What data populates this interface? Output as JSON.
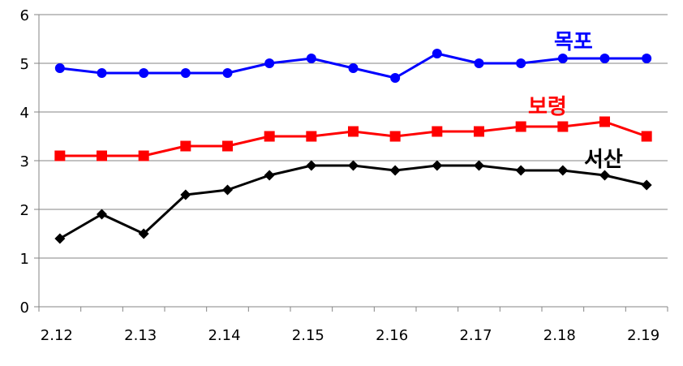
{
  "chart_data": {
    "type": "line",
    "title": "",
    "xlabel": "",
    "ylabel": "",
    "ylim": [
      0,
      6
    ],
    "yticks": [
      "0",
      "1",
      "2",
      "3",
      "4",
      "5",
      "6"
    ],
    "xticks": [
      "2.12",
      "2.13",
      "2.14",
      "2.15",
      "2.16",
      "2.17",
      "2.18",
      "2.19"
    ],
    "x_index_range": [
      0,
      15
    ],
    "grid": "horizontal",
    "series": [
      {
        "name": "목포",
        "color": "#0000ff",
        "marker": "circle",
        "values": [
          4.9,
          4.8,
          4.8,
          4.8,
          4.8,
          5.0,
          5.1,
          4.9,
          4.7,
          5.2,
          5.0,
          5.0,
          5.1,
          5.1,
          5.1
        ]
      },
      {
        "name": "보령",
        "color": "#ff0000",
        "marker": "square",
        "values": [
          3.1,
          3.1,
          3.1,
          3.3,
          3.3,
          3.5,
          3.5,
          3.6,
          3.5,
          3.6,
          3.6,
          3.7,
          3.7,
          3.8,
          3.5
        ]
      },
      {
        "name": "서산",
        "color": "#000000",
        "marker": "diamond",
        "values": [
          1.4,
          1.9,
          1.5,
          2.3,
          2.4,
          2.7,
          2.9,
          2.9,
          2.8,
          2.9,
          2.9,
          2.8,
          2.8,
          2.7,
          2.5
        ]
      }
    ]
  }
}
